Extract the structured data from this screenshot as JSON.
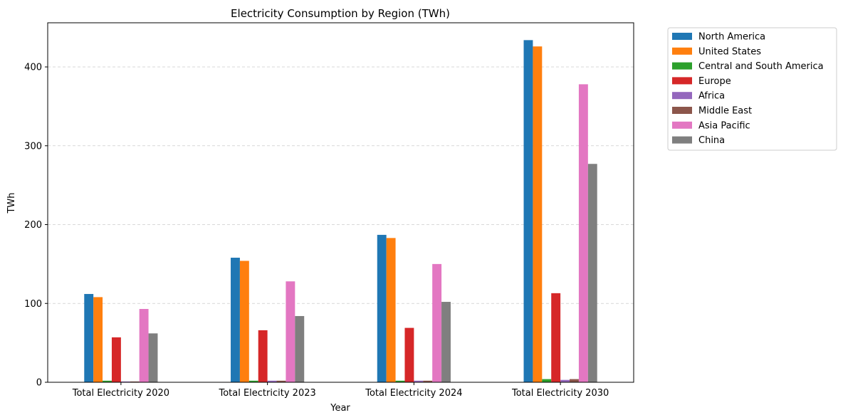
{
  "chart_data": {
    "type": "bar",
    "title": "Electricity Consumption by Region (TWh)",
    "xlabel": "Year",
    "ylabel": "TWh",
    "ylim": [
      0,
      456
    ],
    "yticks": [
      0,
      100,
      200,
      300,
      400
    ],
    "grid": "y-dashed",
    "legend_position": "outside-right",
    "categories": [
      "Total Electricity 2020",
      "Total Electricity 2023",
      "Total Electricity 2024",
      "Total Electricity 2030"
    ],
    "series": [
      {
        "name": "North America",
        "color": "#1f77b4",
        "values": [
          112,
          158,
          187,
          434
        ]
      },
      {
        "name": "United States",
        "color": "#ff7f0e",
        "values": [
          108,
          154,
          183,
          426
        ]
      },
      {
        "name": "Central and South America",
        "color": "#2ca02c",
        "values": [
          2,
          2,
          2,
          4
        ]
      },
      {
        "name": "Europe",
        "color": "#d62728",
        "values": [
          57,
          66,
          69,
          113
        ]
      },
      {
        "name": "Africa",
        "color": "#9467bd",
        "values": [
          1,
          2,
          2,
          3
        ]
      },
      {
        "name": "Middle East",
        "color": "#8c564b",
        "values": [
          1,
          2,
          2,
          4
        ]
      },
      {
        "name": "Asia Pacific",
        "color": "#e377c2",
        "values": [
          93,
          128,
          150,
          378
        ]
      },
      {
        "name": "China",
        "color": "#7f7f7f",
        "values": [
          62,
          84,
          102,
          277
        ]
      }
    ]
  }
}
